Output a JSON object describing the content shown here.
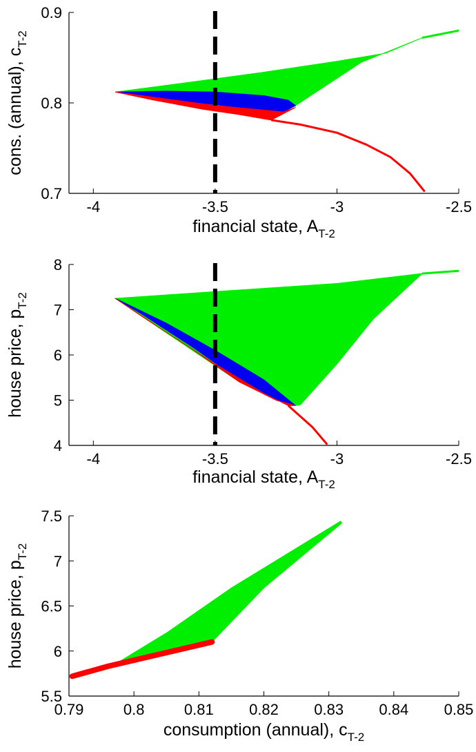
{
  "colors": {
    "green": "#00ee00",
    "blue": "#0000f0",
    "red": "#ff0000",
    "black": "#000000"
  },
  "chart_data": [
    {
      "type": "area",
      "xlabel": "financial state, A",
      "xlabel_sub": "T-2",
      "ylabel": "cons. (annual), c",
      "ylabel_sub": "T-2",
      "xlim": [
        -4.1,
        -2.5
      ],
      "ylim": [
        0.7,
        0.9
      ],
      "xticks": [
        -4,
        -3.5,
        -3,
        -2.5
      ],
      "xtick_labels": [
        "-4",
        "-3.5",
        "-3",
        "-2.5"
      ],
      "yticks": [
        0.7,
        0.8,
        0.9
      ],
      "ytick_labels": [
        "0.7",
        "0.8",
        "0.9"
      ],
      "grid": false,
      "dashed_line_x": -3.5,
      "series": [
        {
          "color": "green",
          "kind": "area",
          "points": [
            [
              -3.91,
              0.812
            ],
            [
              -3.6,
              0.823
            ],
            [
              -3.3,
              0.834
            ],
            [
              -3.0,
              0.846
            ],
            [
              -2.8,
              0.855
            ],
            [
              -2.65,
              0.872
            ],
            [
              -2.9,
              0.845
            ],
            [
              -3.17,
              0.797
            ],
            [
              -3.5,
              0.801
            ],
            [
              -3.91,
              0.812
            ]
          ]
        },
        {
          "color": "blue",
          "kind": "area",
          "points": [
            [
              -3.91,
              0.812
            ],
            [
              -3.7,
              0.813
            ],
            [
              -3.5,
              0.812
            ],
            [
              -3.3,
              0.808
            ],
            [
              -3.2,
              0.803
            ],
            [
              -3.17,
              0.797
            ],
            [
              -3.22,
              0.79
            ],
            [
              -3.4,
              0.795
            ],
            [
              -3.6,
              0.801
            ],
            [
              -3.8,
              0.808
            ],
            [
              -3.91,
              0.812
            ]
          ]
        },
        {
          "color": "red",
          "kind": "area",
          "points": [
            [
              -3.91,
              0.812
            ],
            [
              -3.75,
              0.803
            ],
            [
              -3.55,
              0.793
            ],
            [
              -3.4,
              0.787
            ],
            [
              -3.27,
              0.781
            ],
            [
              -3.17,
              0.795
            ],
            [
              -3.22,
              0.79
            ],
            [
              -3.5,
              0.797
            ],
            [
              -3.91,
              0.812
            ]
          ]
        },
        {
          "color": "red",
          "kind": "line",
          "points": [
            [
              -3.27,
              0.781
            ],
            [
              -3.15,
              0.776
            ],
            [
              -3.0,
              0.767
            ],
            [
              -2.88,
              0.754
            ],
            [
              -2.78,
              0.74
            ],
            [
              -2.7,
              0.722
            ],
            [
              -2.64,
              0.702
            ]
          ]
        },
        {
          "color": "green",
          "kind": "line",
          "points": [
            [
              -2.65,
              0.872
            ],
            [
              -2.5,
              0.88
            ]
          ]
        }
      ]
    },
    {
      "type": "area",
      "xlabel": "financial state, A",
      "xlabel_sub": "T-2",
      "ylabel": "house price, p",
      "ylabel_sub": "T-2",
      "xlim": [
        -4.1,
        -2.5
      ],
      "ylim": [
        4,
        8
      ],
      "xticks": [
        -4,
        -3.5,
        -3,
        -2.5
      ],
      "xtick_labels": [
        "-4",
        "-3.5",
        "-3",
        "-2.5"
      ],
      "yticks": [
        4,
        5,
        6,
        7,
        8
      ],
      "ytick_labels": [
        "4",
        "5",
        "6",
        "7",
        "8"
      ],
      "grid": false,
      "dashed_line_x": -3.5,
      "series": [
        {
          "color": "green",
          "kind": "area",
          "points": [
            [
              -3.91,
              7.25
            ],
            [
              -3.5,
              7.4
            ],
            [
              -3.0,
              7.58
            ],
            [
              -2.65,
              7.8
            ],
            [
              -2.85,
              6.8
            ],
            [
              -3.0,
              5.8
            ],
            [
              -3.15,
              4.9
            ],
            [
              -3.17,
              4.88
            ],
            [
              -3.4,
              5.4
            ],
            [
              -3.91,
              7.25
            ]
          ]
        },
        {
          "color": "blue",
          "kind": "area",
          "points": [
            [
              -3.91,
              7.25
            ],
            [
              -3.7,
              6.7
            ],
            [
              -3.5,
              6.1
            ],
            [
              -3.3,
              5.45
            ],
            [
              -3.17,
              4.88
            ],
            [
              -3.25,
              5.0
            ],
            [
              -3.4,
              5.45
            ],
            [
              -3.6,
              6.2
            ],
            [
              -3.8,
              6.9
            ],
            [
              -3.91,
              7.25
            ]
          ]
        },
        {
          "color": "red",
          "kind": "area",
          "points": [
            [
              -3.91,
              7.25
            ],
            [
              -3.7,
              6.5
            ],
            [
              -3.5,
              5.8
            ],
            [
              -3.3,
              5.15
            ],
            [
              -3.2,
              4.88
            ],
            [
              -3.17,
              4.88
            ],
            [
              -3.25,
              5.0
            ],
            [
              -3.4,
              5.4
            ],
            [
              -3.6,
              6.15
            ],
            [
              -3.8,
              6.85
            ],
            [
              -3.91,
              7.25
            ]
          ]
        },
        {
          "color": "red",
          "kind": "line",
          "points": [
            [
              -3.2,
              4.88
            ],
            [
              -3.1,
              4.4
            ],
            [
              -3.04,
              4.02
            ]
          ]
        },
        {
          "color": "green",
          "kind": "line",
          "points": [
            [
              -2.65,
              7.8
            ],
            [
              -2.5,
              7.86
            ]
          ]
        }
      ]
    },
    {
      "type": "area",
      "xlabel": "consumption (annual), c",
      "xlabel_sub": "T-2",
      "ylabel": "house price, p",
      "ylabel_sub": "T-2",
      "xlim": [
        0.79,
        0.85
      ],
      "ylim": [
        5.5,
        7.5
      ],
      "xticks": [
        0.79,
        0.8,
        0.81,
        0.82,
        0.83,
        0.84,
        0.85
      ],
      "xtick_labels": [
        "0.79",
        "0.8",
        "0.81",
        "0.82",
        "0.83",
        "0.84",
        "0.85"
      ],
      "yticks": [
        5.5,
        6,
        6.5,
        7,
        7.5
      ],
      "ytick_labels": [
        "5.5",
        "6",
        "6.5",
        "7",
        "7.5"
      ],
      "grid": false,
      "series": [
        {
          "color": "green",
          "kind": "area",
          "points": [
            [
              0.7968,
              5.84
            ],
            [
              0.805,
              6.2
            ],
            [
              0.815,
              6.7
            ],
            [
              0.8318,
              7.44
            ],
            [
              0.832,
              7.42
            ],
            [
              0.82,
              6.7
            ],
            [
              0.812,
              6.1
            ],
            [
              0.8,
              5.92
            ],
            [
              0.7968,
              5.84
            ]
          ]
        },
        {
          "color": "red",
          "kind": "thick-line",
          "points": [
            [
              0.7905,
              5.72
            ],
            [
              0.796,
              5.83
            ],
            [
              0.812,
              6.1
            ]
          ]
        }
      ]
    }
  ]
}
